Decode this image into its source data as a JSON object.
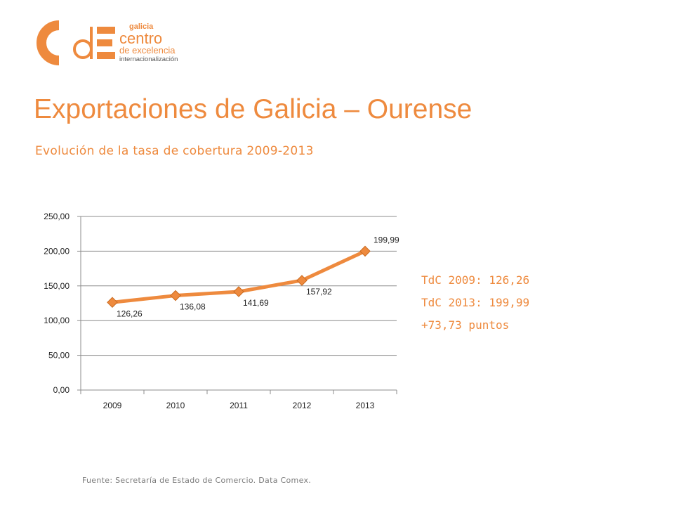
{
  "logo": {
    "letters": "CdE",
    "line1": "galicia",
    "line2": "centro",
    "line3": "de excelencia",
    "line4": "internacionalización",
    "brand_color": "#EE8A3E"
  },
  "header": {
    "title": "Exportaciones de Galicia – Ourense",
    "subtitle": "Evolución de la tasa de cobertura 2009-2013"
  },
  "stats": [
    "TdC 2009: 126,26",
    "TdC 2013: 199,99",
    "+73,73 puntos"
  ],
  "source": "Fuente: Secretaría de Estado de Comercio. Data Comex.",
  "chart_data": {
    "type": "line",
    "categories": [
      "2009",
      "2010",
      "2011",
      "2012",
      "2013"
    ],
    "values": [
      126.26,
      136.08,
      141.69,
      157.92,
      199.99
    ],
    "data_labels": [
      "126,26",
      "136,08",
      "141,69",
      "157,92",
      "199,99"
    ],
    "y_ticks": [
      "0,00",
      "50,00",
      "100,00",
      "150,00",
      "200,00",
      "250,00"
    ],
    "ylim": [
      0,
      250
    ],
    "grid": true,
    "legend": "none",
    "line_color": "#EE8A3E",
    "marker_color": "#EE8A3E"
  }
}
